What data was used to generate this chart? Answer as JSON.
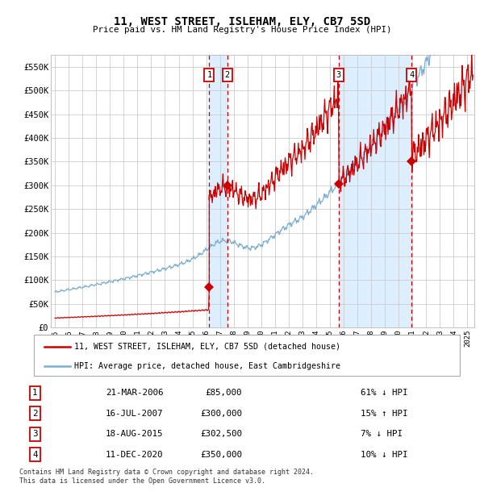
{
  "title": "11, WEST STREET, ISLEHAM, ELY, CB7 5SD",
  "subtitle": "Price paid vs. HM Land Registry's House Price Index (HPI)",
  "legend_line1": "11, WEST STREET, ISLEHAM, ELY, CB7 5SD (detached house)",
  "legend_line2": "HPI: Average price, detached house, East Cambridgeshire",
  "footnote1": "Contains HM Land Registry data © Crown copyright and database right 2024.",
  "footnote2": "This data is licensed under the Open Government Licence v3.0.",
  "red_color": "#cc0000",
  "blue_color": "#7aadcf",
  "shade_color": "#ddeeff",
  "grid_color": "#cccccc",
  "transactions": [
    {
      "label": "1",
      "date": "2006-03-21",
      "price": 85000,
      "x_num": 2006.22
    },
    {
      "label": "2",
      "date": "2007-07-16",
      "price": 300000,
      "x_num": 2007.54
    },
    {
      "label": "3",
      "date": "2015-08-18",
      "price": 302500,
      "x_num": 2015.63
    },
    {
      "label": "4",
      "date": "2020-12-11",
      "price": 350000,
      "x_num": 2020.95
    }
  ],
  "table_rows": [
    [
      "1",
      "21-MAR-2006",
      "£85,000",
      "61% ↓ HPI"
    ],
    [
      "2",
      "16-JUL-2007",
      "£300,000",
      "15% ↑ HPI"
    ],
    [
      "3",
      "18-AUG-2015",
      "£302,500",
      "7% ↓ HPI"
    ],
    [
      "4",
      "11-DEC-2020",
      "£350,000",
      "10% ↓ HPI"
    ]
  ],
  "ylim": [
    0,
    575000
  ],
  "yticks": [
    0,
    50000,
    100000,
    150000,
    200000,
    250000,
    300000,
    350000,
    400000,
    450000,
    500000,
    550000
  ],
  "ytick_labels": [
    "£0",
    "£50K",
    "£100K",
    "£150K",
    "£200K",
    "£250K",
    "£300K",
    "£350K",
    "£400K",
    "£450K",
    "£500K",
    "£550K"
  ],
  "xlim_start": 1994.7,
  "xlim_end": 2025.5,
  "xtick_labels": [
    "1995",
    "1996",
    "1997",
    "1998",
    "1999",
    "2000",
    "2001",
    "2002",
    "2003",
    "2004",
    "2005",
    "2006",
    "2007",
    "2008",
    "2009",
    "2010",
    "2011",
    "2012",
    "2013",
    "2014",
    "2015",
    "2016",
    "2017",
    "2018",
    "2019",
    "2020",
    "2021",
    "2022",
    "2023",
    "2024",
    "2025"
  ]
}
